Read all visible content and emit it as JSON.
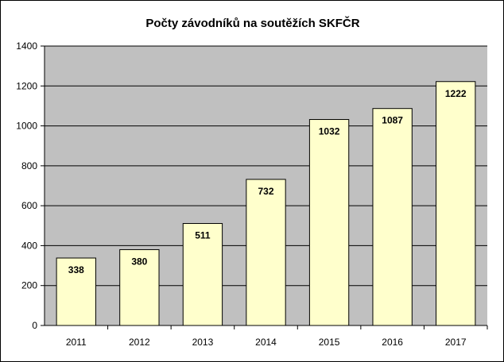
{
  "chart_data": {
    "type": "bar",
    "title": "Počty závodníků na soutěžích SKFČR",
    "categories": [
      "2011",
      "2012",
      "2013",
      "2014",
      "2015",
      "2016",
      "2017"
    ],
    "values": [
      338,
      380,
      511,
      732,
      1032,
      1087,
      1222
    ],
    "data_labels": [
      "338",
      "380",
      "511",
      "732",
      "1032",
      "1087",
      "1222"
    ],
    "ylim": [
      0,
      1400
    ],
    "yticks": [
      0,
      200,
      400,
      600,
      800,
      1000,
      1200,
      1400
    ],
    "ytick_labels": [
      "0",
      "200",
      "400",
      "600",
      "800",
      "1000",
      "1200",
      "1400"
    ],
    "grid": true,
    "legend": "none",
    "colors": {
      "plot_background": "#c0c0c0",
      "bar_fill": "#ffffcc",
      "bar_stroke": "#000000",
      "gridline": "#000000"
    }
  }
}
